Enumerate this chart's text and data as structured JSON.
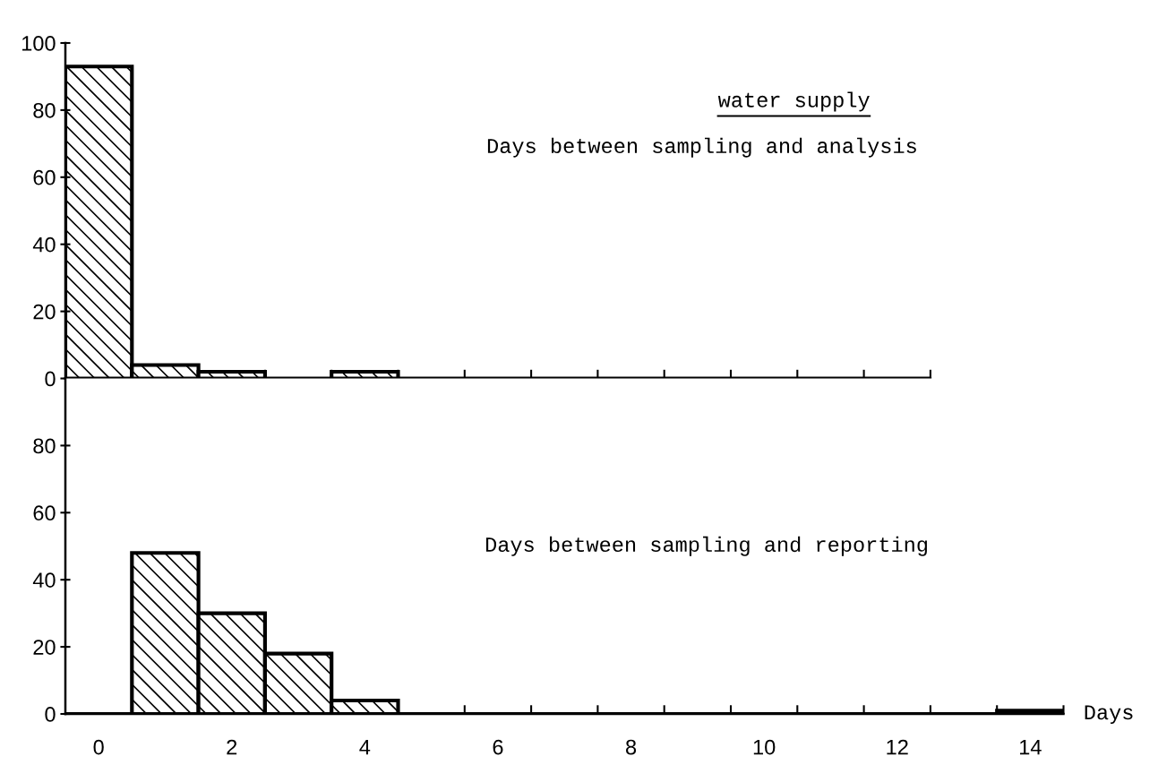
{
  "chart_data": [
    {
      "type": "bar",
      "title": "water supply",
      "subtitle": "Days between sampling and analysis",
      "categories": [
        null,
        null,
        null,
        null,
        null,
        null,
        null,
        null,
        null,
        null,
        null,
        null,
        null
      ],
      "values": [
        93,
        4,
        2,
        0,
        2,
        0,
        0,
        0,
        0,
        0,
        0,
        0,
        0
      ],
      "color": "#000000",
      "ylim": [
        0,
        100
      ],
      "yticks": [
        0,
        20,
        40,
        60,
        80,
        100
      ],
      "tick_labels": "y",
      "grid": false,
      "legend": false
    },
    {
      "type": "histogram",
      "annotations": [
        "Days between sampling and reporting"
      ],
      "xlabel": "Days",
      "bins": [
        -0.5,
        0.5,
        1.5,
        2.5,
        3.5,
        4.5,
        5.5,
        6.5,
        7.5,
        8.5,
        9.5,
        10.5,
        11.5,
        12.5,
        13.5,
        14.5
      ],
      "values": [
        0,
        48,
        30,
        18,
        4,
        0,
        0,
        0,
        0,
        0,
        0,
        0,
        0,
        0,
        1
      ],
      "color": "#000000",
      "xlim": [
        -0.5,
        14.5
      ],
      "ylim": [
        0,
        100
      ],
      "xticks": [
        {
          "value": 0.5,
          "label": null
        },
        {
          "value": 1.5,
          "label": null
        },
        {
          "value": 2.5,
          "label": null
        },
        {
          "value": 3.5,
          "label": null
        },
        {
          "value": 4.5,
          "label": null
        },
        {
          "value": 5.5,
          "label": null
        },
        {
          "value": 6.5,
          "label": null
        },
        {
          "value": 7.5,
          "label": null
        },
        {
          "value": 8.5,
          "label": null
        },
        {
          "value": 9.5,
          "label": null
        },
        {
          "value": 10.5,
          "label": null
        },
        {
          "value": 11.5,
          "label": null
        },
        {
          "value": 12.5,
          "label": null
        },
        {
          "value": 13.5,
          "label": null
        },
        {
          "value": 14.5,
          "label": null
        },
        0,
        2,
        4,
        6,
        8,
        10,
        12,
        14
      ],
      "yticks": [
        0,
        20,
        40,
        60,
        80
      ],
      "grid": false,
      "legend": false
    }
  ]
}
